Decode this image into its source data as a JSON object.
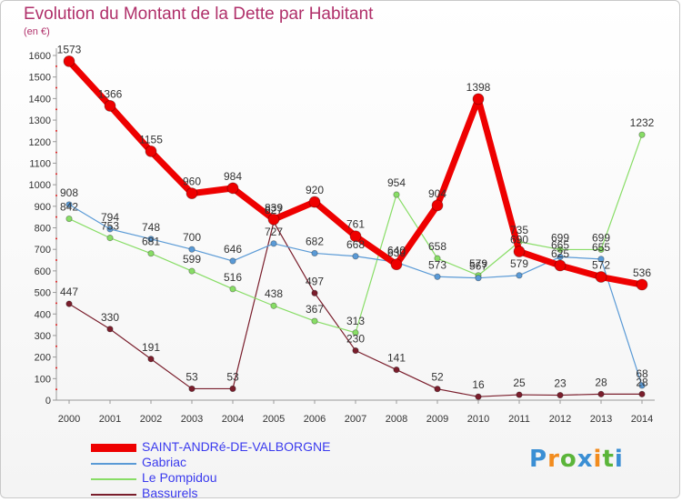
{
  "chart_data": {
    "type": "line",
    "title": "Evolution du Montant de la Dette par Habitant",
    "ylabel": "(en €)",
    "xlabel": "",
    "ylim": [
      0,
      1600
    ],
    "yticks": [
      0,
      100,
      200,
      300,
      400,
      500,
      600,
      700,
      800,
      900,
      1000,
      1100,
      1200,
      1300,
      1400,
      1500,
      1600
    ],
    "categories": [
      "2000",
      "2001",
      "2002",
      "2003",
      "2004",
      "2005",
      "2006",
      "2007",
      "2008",
      "2009",
      "2010",
      "2011",
      "2012",
      "2013",
      "2014"
    ],
    "series": [
      {
        "name": "SAINT-ANDRé-DE-VALBORGNE",
        "color": "#ee0000",
        "width": 7,
        "values": [
          1573,
          1366,
          1155,
          960,
          984,
          839,
          920,
          761,
          630,
          904,
          1398,
          690,
          625,
          572,
          536
        ],
        "labels": [
          "1573",
          "1366",
          "1155",
          "960",
          "984",
          "839",
          "920",
          "761",
          "630",
          "904",
          "1398",
          "690",
          "625",
          "572",
          "536"
        ]
      },
      {
        "name": "Gabriac",
        "color": "#5a9ad6",
        "width": 1.2,
        "values": [
          908,
          794,
          748,
          700,
          646,
          727,
          682,
          668,
          640,
          573,
          567,
          579,
          665,
          655,
          68
        ],
        "labels": [
          "908",
          "794",
          "748",
          "700",
          "646",
          "727",
          "682",
          "668",
          "640",
          "573",
          "567",
          "579",
          "665",
          "655",
          "68"
        ]
      },
      {
        "name": "Le Pompidou",
        "color": "#88dd66",
        "width": 1.2,
        "values": [
          842,
          753,
          681,
          599,
          516,
          438,
          367,
          313,
          954,
          658,
          579,
          735,
          699,
          699,
          1232
        ],
        "labels": [
          "842",
          "753",
          "681",
          "599",
          "516",
          "438",
          "367",
          "313",
          "954",
          "658",
          "579",
          "735",
          "699",
          "699",
          "1232"
        ]
      },
      {
        "name": "Bassurels",
        "color": "#7a1e2c",
        "width": 1.2,
        "values": [
          447,
          330,
          191,
          53,
          53,
          827,
          497,
          230,
          141,
          52,
          16,
          25,
          23,
          28,
          28
        ],
        "labels": [
          "447",
          "330",
          "191",
          "53",
          "53",
          "827",
          "497",
          "230",
          "141",
          "52",
          "16",
          "25",
          "23",
          "28",
          "28"
        ]
      }
    ],
    "grid": false,
    "legend": "bottom-left"
  },
  "brand": {
    "letters": [
      "P",
      "r",
      "o",
      "x",
      "i",
      "t",
      "i"
    ],
    "colors": [
      "#3b8fd4",
      "#f28c1e",
      "#5bb53a",
      "#3b8fd4",
      "#f28c1e",
      "#5bb53a",
      "#3b8fd4"
    ]
  }
}
